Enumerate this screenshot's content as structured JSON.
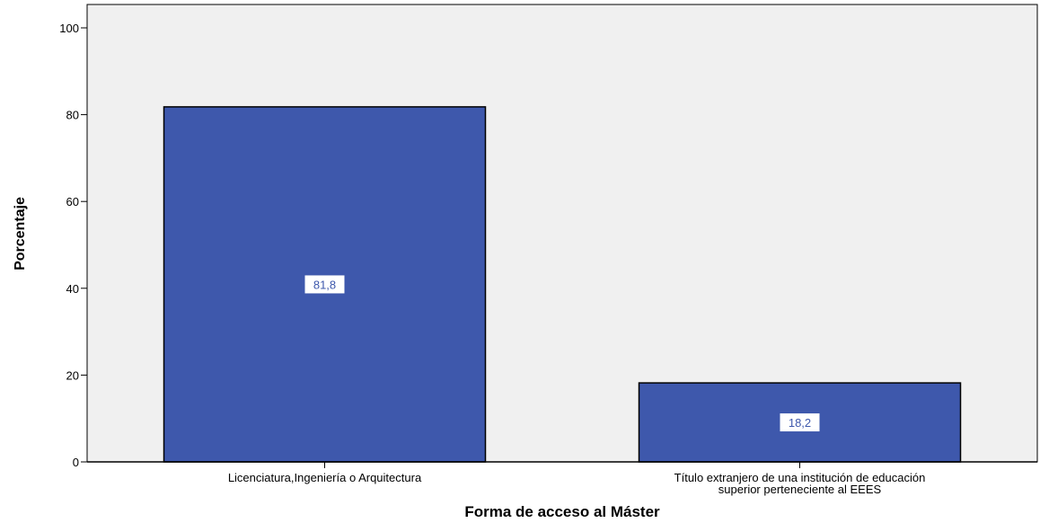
{
  "chart_data": {
    "type": "bar",
    "categories": [
      [
        "Licenciatura,Ingeniería o Arquitectura"
      ],
      [
        "Título extranjero de una institución de educación",
        "superior perteneciente al EEES"
      ]
    ],
    "values": [
      81.8,
      18.2
    ],
    "data_labels": [
      "81,8",
      "18,2"
    ],
    "title": "",
    "xlabel": "Forma de acceso al Máster",
    "ylabel": "Porcentaje",
    "ylim": [
      0,
      100
    ],
    "yticks": [
      0,
      20,
      40,
      60,
      80,
      100
    ],
    "grid": false,
    "colors": {
      "bar": "#3e58ac",
      "plot_background": "#f0f0f0",
      "label_text": "#3e58ac"
    }
  }
}
